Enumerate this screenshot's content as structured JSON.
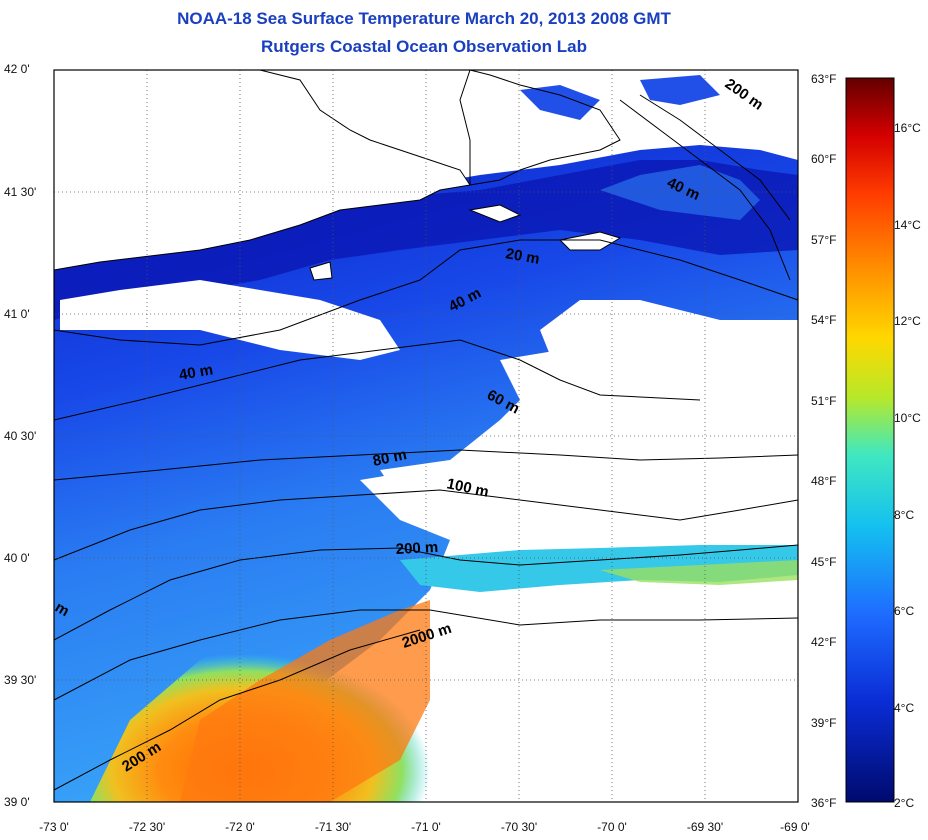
{
  "title": {
    "line1": "NOAA-18 Sea Surface Temperature March 20, 2013 2008 GMT",
    "line2": "Rutgers Coastal Ocean Observation Lab"
  },
  "lat_ticks": [
    "42 0'",
    "41 30'",
    "41 0'",
    "40 30'",
    "40 0'",
    "39 30'",
    "39 0'"
  ],
  "lon_ticks": [
    "-73 0'",
    "-72 30'",
    "-72 0'",
    "-71 30'",
    "-71 0'",
    "-70 30'",
    "-70 0'",
    "-69 30'",
    "-69 0'"
  ],
  "colorbar": {
    "fahrenheit": [
      "63°F",
      "60°F",
      "57°F",
      "54°F",
      "51°F",
      "48°F",
      "45°F",
      "42°F",
      "39°F",
      "36°F"
    ],
    "celsius": [
      "16°C",
      "14°C",
      "12°C",
      "10°C",
      "8°C",
      "6°C",
      "4°C",
      "2°C"
    ],
    "colors": [
      "#6b0000",
      "#c80000",
      "#ff3000",
      "#ff8c00",
      "#ffd000",
      "#b0e020",
      "#30e0c0",
      "#10c8f0",
      "#1a8cff",
      "#1a46f0",
      "#0a1eb4",
      "#001070"
    ]
  },
  "depth_contours": [
    "20 m",
    "40 m",
    "40 m",
    "40 m",
    "60 m",
    "80 m",
    "100 m",
    "200 m",
    "200 m",
    "200 m",
    "2000 m",
    "m"
  ],
  "colors": {
    "title": "#1a3fbf",
    "land": "#ffffff",
    "coast": "#000000"
  }
}
